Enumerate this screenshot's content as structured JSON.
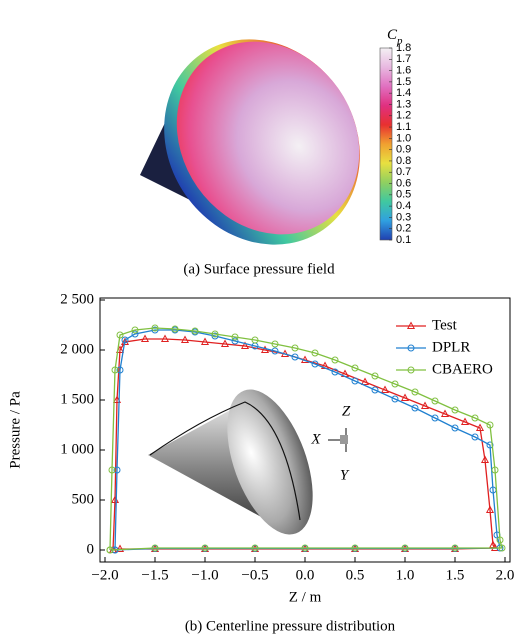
{
  "chart_data": [
    {
      "type": "colorbar",
      "title": "C",
      "title_subscript": "p",
      "caption": "(a) Surface pressure field",
      "colors": [
        "#2040b0",
        "#30a0e0",
        "#40c8a0",
        "#90d060",
        "#e8e040",
        "#f0a030",
        "#e83030",
        "#e03080",
        "#e070c0",
        "#e8b8e0",
        "#f4f0f4"
      ],
      "ylim": [
        0.1,
        1.8
      ],
      "ticks": [
        0.1,
        0.2,
        0.3,
        0.4,
        0.5,
        0.6,
        0.7,
        0.8,
        0.9,
        {
          "value": 1,
          "label": "1.0"
        },
        1.1,
        1.2,
        1.3,
        1.4,
        1.5,
        1.6,
        1.7,
        1.8
      ]
    },
    {
      "type": "line",
      "caption": "(b) Centerline pressure distribution",
      "x_label": "Z / m",
      "y_label": "Pressure / Pa",
      "xlim": [
        -2.05,
        2.05
      ],
      "ylim": [
        -120,
        2520
      ],
      "xticks": [
        {
          "value": -2,
          "label": "−2.0"
        },
        {
          "value": -1.5,
          "label": "−1.5"
        },
        {
          "value": -1,
          "label": "−1.0"
        },
        {
          "value": -0.5,
          "label": "−0.5"
        },
        {
          "value": 0,
          "label": "0.0"
        },
        0.5,
        {
          "value": 1,
          "label": "1.0"
        },
        1.5,
        {
          "value": 2,
          "label": "2.0"
        }
      ],
      "yticks": [
        0,
        500,
        {
          "value": 1000,
          "label": "1 000"
        },
        {
          "value": 1500,
          "label": "1 500"
        },
        {
          "value": 2000,
          "label": "2 000"
        },
        {
          "value": 2500,
          "label": "2 500"
        }
      ],
      "legend": "upper right",
      "annotations": [
        "X",
        "Y",
        "Z"
      ],
      "series": [
        {
          "name": "Test",
          "color": "#e02020",
          "marker": "triangle",
          "x": [
            -1.92,
            -1.9,
            -1.88,
            -1.85,
            -1.8,
            -1.6,
            -1.4,
            -1.2,
            -1.0,
            -0.8,
            -0.6,
            -0.4,
            -0.2,
            0,
            0.2,
            0.4,
            0.6,
            0.8,
            1.0,
            1.2,
            1.4,
            1.6,
            1.75,
            1.8,
            1.85,
            1.88,
            1.9,
            1.5,
            1.0,
            0.5,
            0,
            -0.5,
            -1.0,
            -1.5,
            -1.85,
            -1.92
          ],
          "values": [
            0,
            500,
            1500,
            2000,
            2080,
            2110,
            2110,
            2100,
            2080,
            2060,
            2040,
            2000,
            1960,
            1900,
            1840,
            1760,
            1680,
            1600,
            1520,
            1440,
            1360,
            1280,
            1220,
            900,
            400,
            50,
            20,
            10,
            10,
            10,
            10,
            10,
            10,
            10,
            10,
            0
          ]
        },
        {
          "name": "DPLR",
          "color": "#2080d0",
          "marker": "circle",
          "x": [
            -1.9,
            -1.88,
            -1.85,
            -1.8,
            -1.7,
            -1.5,
            -1.3,
            -1.1,
            -0.9,
            -0.7,
            -0.5,
            -0.3,
            -0.1,
            0.1,
            0.3,
            0.5,
            0.7,
            0.9,
            1.1,
            1.3,
            1.5,
            1.7,
            1.85,
            1.88,
            1.92,
            1.95,
            1.5,
            1.0,
            0.5,
            0,
            -0.5,
            -1.0,
            -1.5,
            -1.9
          ],
          "values": [
            0,
            800,
            1800,
            2100,
            2160,
            2200,
            2200,
            2180,
            2140,
            2090,
            2040,
            1990,
            1930,
            1860,
            1780,
            1690,
            1600,
            1510,
            1420,
            1320,
            1220,
            1130,
            1050,
            600,
            150,
            20,
            15,
            15,
            15,
            15,
            15,
            15,
            15,
            0
          ]
        },
        {
          "name": "CBAERO",
          "color": "#80c040",
          "marker": "circle",
          "x": [
            -1.95,
            -1.93,
            -1.9,
            -1.85,
            -1.7,
            -1.5,
            -1.3,
            -1.1,
            -0.9,
            -0.7,
            -0.5,
            -0.3,
            -0.1,
            0.1,
            0.3,
            0.5,
            0.7,
            0.9,
            1.1,
            1.3,
            1.5,
            1.7,
            1.85,
            1.9,
            1.95,
            1.97,
            1.5,
            1.0,
            0.5,
            0,
            -0.5,
            -1.0,
            -1.5,
            -1.95
          ],
          "values": [
            0,
            800,
            1800,
            2150,
            2200,
            2220,
            2210,
            2190,
            2160,
            2130,
            2100,
            2060,
            2020,
            1970,
            1900,
            1820,
            1740,
            1660,
            1580,
            1490,
            1400,
            1320,
            1250,
            800,
            100,
            20,
            20,
            20,
            20,
            20,
            20,
            20,
            20,
            0
          ]
        }
      ]
    }
  ]
}
